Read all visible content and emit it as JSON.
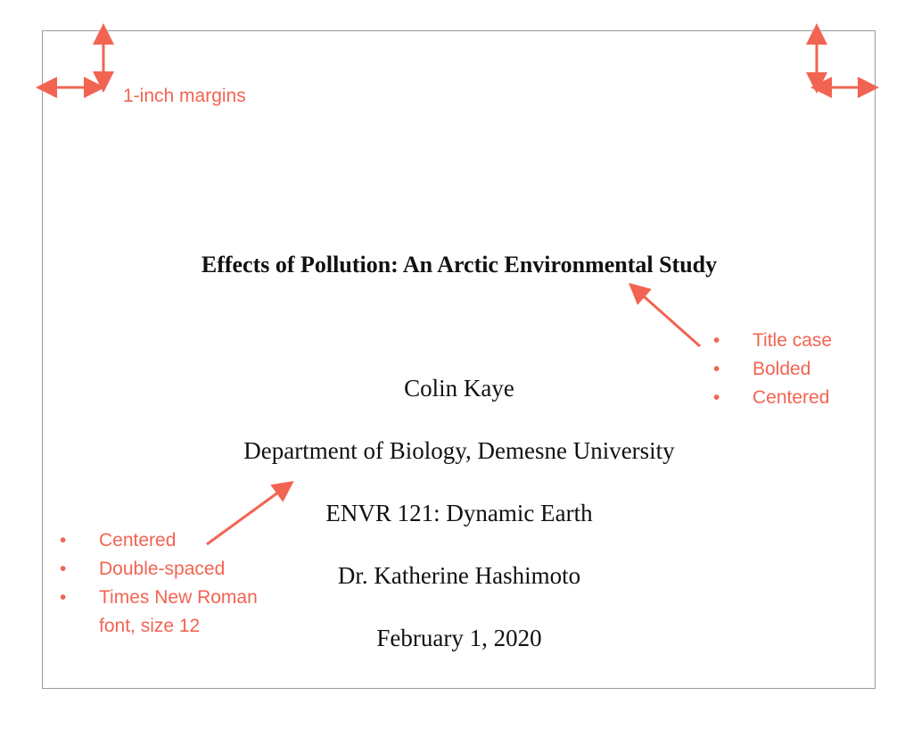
{
  "document": {
    "title": "Effects of Pollution: An Arctic Environmental Study",
    "author": "Colin Kaye",
    "affiliation": "Department of Biology, Demesne University",
    "course": "ENVR 121: Dynamic Earth",
    "instructor": "Dr. Katherine Hashimoto",
    "date": "February 1, 2020"
  },
  "annotations": {
    "margins": "1-inch margins",
    "title_notes": [
      "Title case",
      "Bolded",
      "Centered"
    ],
    "body_notes": [
      "Centered",
      "Double-spaced",
      "Times New Roman",
      "font, size 12"
    ],
    "bullet": "•"
  },
  "colors": {
    "annotation": "#f26452",
    "page_border": "#9a9a9a"
  }
}
